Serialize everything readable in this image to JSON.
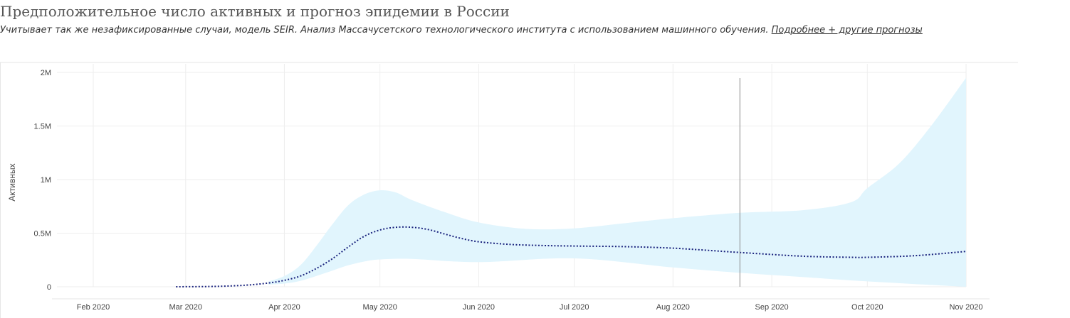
{
  "header": {
    "title": "Предположительное число активных и прогноз эпидемии в России",
    "subtitle": "Учитывает так же незафиксированные случаи, модель SEIR. Анализ Массачусетского технологического института с использованием машинного обучения.",
    "link_label": "Подробнее + другие прогнозы"
  },
  "chart_data": {
    "type": "line",
    "ylabel": "Активных",
    "ylim": [
      0,
      2000000
    ],
    "x_ticks": [
      "Feb 2020",
      "Mar 2020",
      "Apr 2020",
      "May 2020",
      "Jun 2020",
      "Jul 2020",
      "Aug 2020",
      "Sep 2020",
      "Oct 2020",
      "Nov 2020"
    ],
    "x_tick_dates": [
      "2020-02-01",
      "2020-03-01",
      "2020-04-01",
      "2020-05-01",
      "2020-06-01",
      "2020-07-01",
      "2020-08-01",
      "2020-09-01",
      "2020-10-01",
      "2020-11-01"
    ],
    "y_ticks": [
      {
        "value": 0,
        "label": "0"
      },
      {
        "value": 500000,
        "label": "0.5M"
      },
      {
        "value": 1000000,
        "label": "1M"
      },
      {
        "value": 1500000,
        "label": "1.5M"
      },
      {
        "value": 2000000,
        "label": "2M"
      }
    ],
    "vertical_marker_date": "2020-08-22",
    "grid": true,
    "series": [
      {
        "kind": "line",
        "style": "dotted",
        "color": "#1a237e",
        "points": [
          [
            "2020-02-27",
            0
          ],
          [
            "2020-03-10",
            3000
          ],
          [
            "2020-03-20",
            15000
          ],
          [
            "2020-03-27",
            35000
          ],
          [
            "2020-04-01",
            60000
          ],
          [
            "2020-04-06",
            100000
          ],
          [
            "2020-04-11",
            170000
          ],
          [
            "2020-04-16",
            260000
          ],
          [
            "2020-04-21",
            370000
          ],
          [
            "2020-04-26",
            470000
          ],
          [
            "2020-05-01",
            530000
          ],
          [
            "2020-05-06",
            555000
          ],
          [
            "2020-05-11",
            555000
          ],
          [
            "2020-05-16",
            535000
          ],
          [
            "2020-05-21",
            495000
          ],
          [
            "2020-05-26",
            455000
          ],
          [
            "2020-06-01",
            420000
          ],
          [
            "2020-06-11",
            395000
          ],
          [
            "2020-06-21",
            385000
          ],
          [
            "2020-07-01",
            380000
          ],
          [
            "2020-07-16",
            375000
          ],
          [
            "2020-08-01",
            360000
          ],
          [
            "2020-08-22",
            320000
          ],
          [
            "2020-09-11",
            285000
          ],
          [
            "2020-09-26",
            275000
          ],
          [
            "2020-10-01",
            275000
          ],
          [
            "2020-10-16",
            290000
          ],
          [
            "2020-11-01",
            330000
          ]
        ]
      },
      {
        "kind": "band",
        "color": "#e1f5fd",
        "upper": [
          [
            "2020-03-27",
            50000
          ],
          [
            "2020-04-01",
            100000
          ],
          [
            "2020-04-06",
            200000
          ],
          [
            "2020-04-11",
            380000
          ],
          [
            "2020-04-16",
            580000
          ],
          [
            "2020-04-21",
            760000
          ],
          [
            "2020-04-26",
            860000
          ],
          [
            "2020-05-01",
            900000
          ],
          [
            "2020-05-06",
            880000
          ],
          [
            "2020-05-11",
            810000
          ],
          [
            "2020-05-21",
            700000
          ],
          [
            "2020-06-01",
            600000
          ],
          [
            "2020-06-16",
            540000
          ],
          [
            "2020-07-01",
            545000
          ],
          [
            "2020-07-16",
            590000
          ],
          [
            "2020-08-01",
            640000
          ],
          [
            "2020-08-22",
            690000
          ],
          [
            "2020-09-11",
            715000
          ],
          [
            "2020-09-26",
            790000
          ],
          [
            "2020-10-01",
            920000
          ],
          [
            "2020-10-11",
            1150000
          ],
          [
            "2020-10-21",
            1500000
          ],
          [
            "2020-11-01",
            1950000
          ]
        ],
        "lower": [
          [
            "2020-03-27",
            20000
          ],
          [
            "2020-04-01",
            30000
          ],
          [
            "2020-04-06",
            55000
          ],
          [
            "2020-04-11",
            100000
          ],
          [
            "2020-04-16",
            150000
          ],
          [
            "2020-04-21",
            200000
          ],
          [
            "2020-04-26",
            235000
          ],
          [
            "2020-05-01",
            255000
          ],
          [
            "2020-05-11",
            260000
          ],
          [
            "2020-06-01",
            230000
          ],
          [
            "2020-07-01",
            265000
          ],
          [
            "2020-08-01",
            180000
          ],
          [
            "2020-08-22",
            130000
          ],
          [
            "2020-09-11",
            90000
          ],
          [
            "2020-10-01",
            50000
          ],
          [
            "2020-11-01",
            0
          ]
        ]
      }
    ]
  }
}
